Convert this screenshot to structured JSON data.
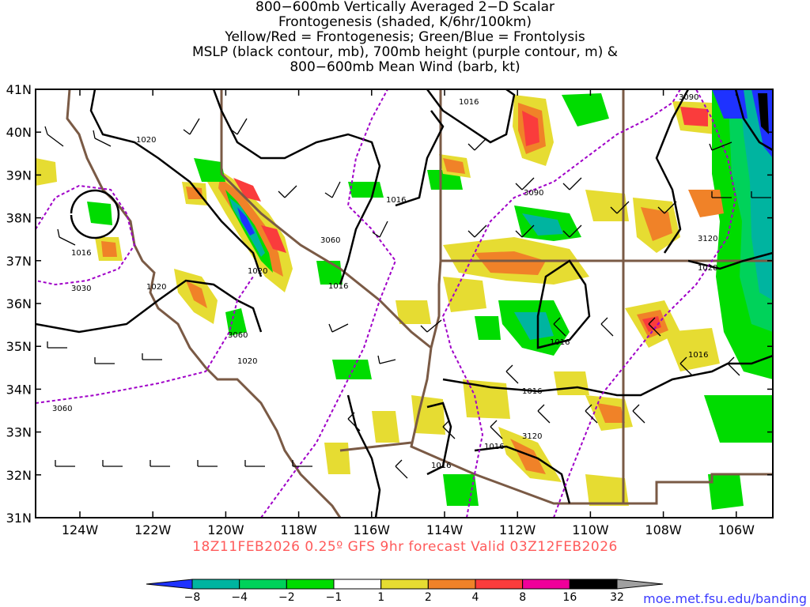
{
  "title_lines": [
    "800−600mb Vertically Averaged 2−D Scalar",
    "Frontogenesis (shaded, K/6hr/100km)",
    "Yellow/Red = Frontogenesis;  Green/Blue = Frontolysis",
    "MSLP (black contour, mb), 700mb height (purple contour, m) &",
    "800−600mb Mean Wind (barb, kt)"
  ],
  "lat_labels": [
    "41N",
    "40N",
    "39N",
    "38N",
    "37N",
    "36N",
    "35N",
    "34N",
    "33N",
    "32N",
    "31N"
  ],
  "lon_labels": [
    "124W",
    "122W",
    "120W",
    "118W",
    "116W",
    "114W",
    "112W",
    "110W",
    "108W",
    "106W"
  ],
  "valid_text": "18Z11FEB2026 0.25º GFS 9hr forecast Valid 03Z12FEB2026",
  "colorbar": {
    "ticks": [
      "−8",
      "−4",
      "−2",
      "−1",
      "1",
      "2",
      "4",
      "8",
      "16",
      "32"
    ],
    "colors": [
      "#1e32ff",
      "#00b4a0",
      "#00d25a",
      "#00dc00",
      "#ffffff",
      "#e6dc32",
      "#f08228",
      "#fa3c3c",
      "#f0009a",
      "#000000",
      "#a0a0a0"
    ]
  },
  "mslp_labels": [
    "1020",
    "1016",
    "1020",
    "1020",
    "1016",
    "1016",
    "1020",
    "1016",
    "1016",
    "1016",
    "1016",
    "1016",
    "1016",
    "1020"
  ],
  "height_labels": [
    "3030",
    "3060",
    "3060",
    "3060",
    "3090",
    "3090",
    "3120",
    "3120"
  ],
  "credit": "moe.met.fsu.edu/banding"
}
